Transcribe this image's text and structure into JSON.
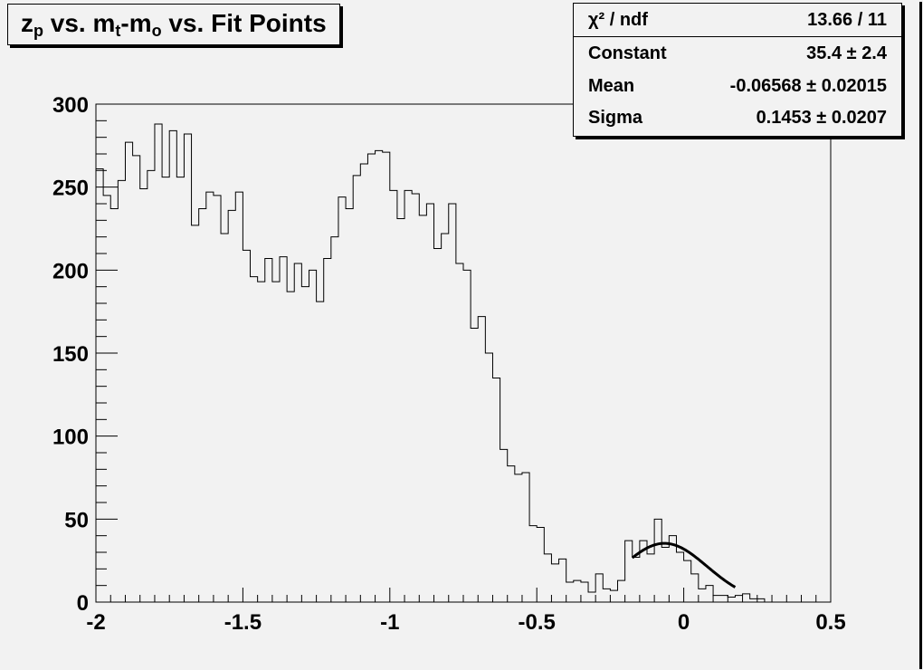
{
  "title_parts": [
    "z",
    "p",
    " vs. m",
    "t",
    "-m",
    "o",
    " vs. Fit Points"
  ],
  "stats": {
    "header_key": "χ² / ndf",
    "header_val": "13.66 / 11",
    "rows": [
      {
        "key": "Constant",
        "val": "35.4 ± 2.4"
      },
      {
        "key": "Mean",
        "val": "-0.06568 ± 0.02015"
      },
      {
        "key": "Sigma",
        "val": "0.1453 ± 0.0207"
      }
    ]
  },
  "chart_data": {
    "type": "bar",
    "title": "zp vs. mt-mo vs. Fit Points",
    "xlim": [
      -2,
      0.5
    ],
    "ylim": [
      0,
      300
    ],
    "xticks": [
      "-2",
      "-1.5",
      "-1",
      "-0.5",
      "0",
      "0.5"
    ],
    "yticks": [
      "0",
      "50",
      "100",
      "150",
      "200",
      "250",
      "300"
    ],
    "bin_width": 0.025,
    "bins_start": -2.0,
    "values": [
      261,
      245,
      237,
      254,
      277,
      269,
      249,
      260,
      288,
      256,
      284,
      256,
      282,
      227,
      237,
      247,
      245,
      222,
      236,
      247,
      212,
      196,
      193,
      207,
      193,
      208,
      187,
      204,
      190,
      200,
      181,
      207,
      220,
      244,
      237,
      257,
      264,
      270,
      272,
      271,
      248,
      231,
      248,
      246,
      233,
      240,
      213,
      222,
      240,
      204,
      200,
      165,
      172,
      150,
      135,
      92,
      82,
      77,
      78,
      46,
      45,
      29,
      23,
      26,
      12,
      13,
      12,
      6,
      17,
      8,
      7,
      13,
      37,
      27,
      37,
      29,
      50,
      33,
      40,
      30,
      25,
      17,
      8,
      10,
      4,
      4,
      3,
      4,
      5,
      2,
      2,
      0,
      0,
      0,
      0,
      0,
      0,
      0,
      0,
      0
    ],
    "fit": {
      "type": "gaus",
      "constant": 35.4,
      "mean": -0.06568,
      "sigma": 0.1453,
      "range": [
        -0.175,
        0.175
      ]
    }
  }
}
